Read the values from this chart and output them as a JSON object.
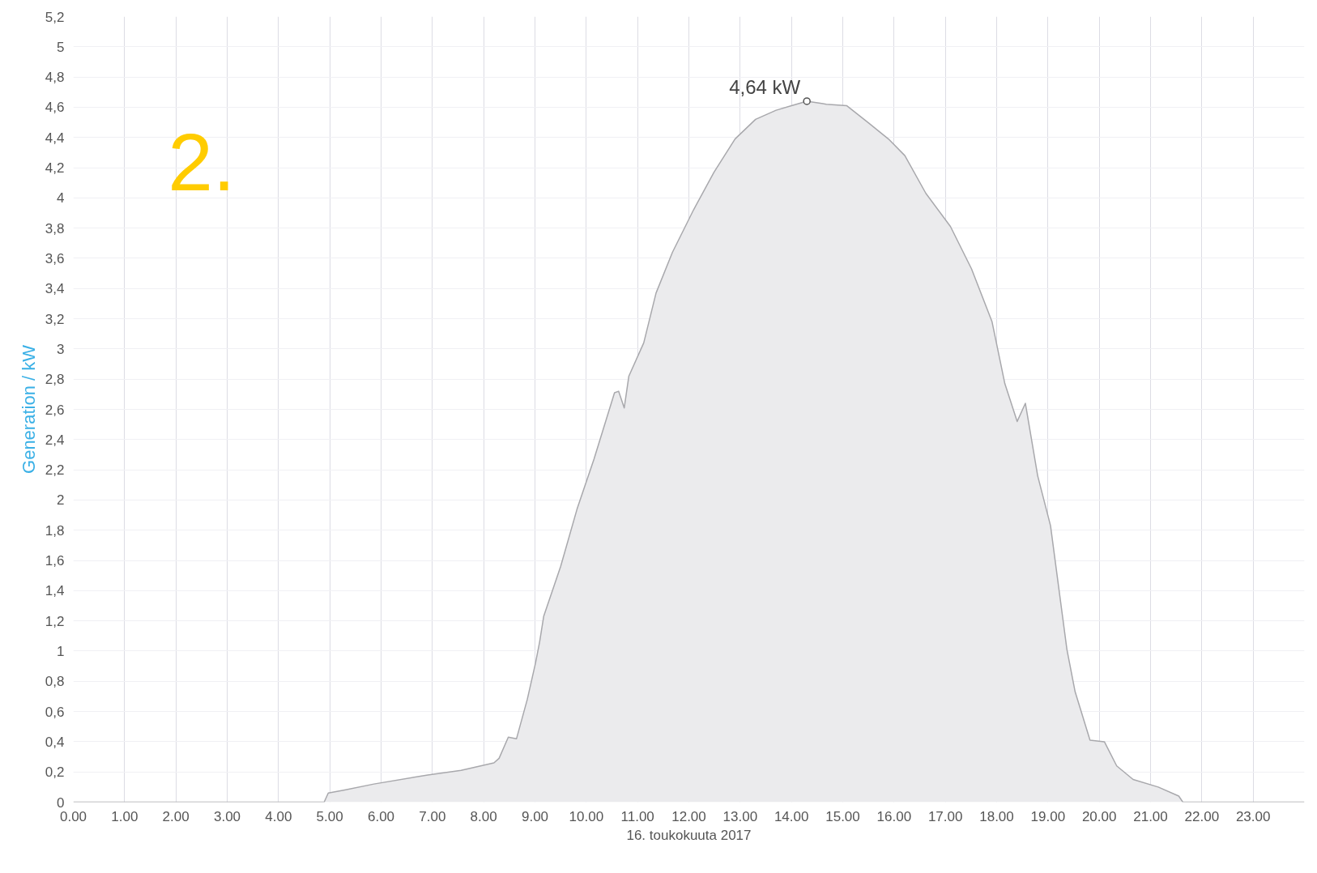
{
  "chart_data": {
    "type": "area",
    "xlabel": "16. toukokuuta 2017",
    "ylabel": "Generation / kW",
    "x": [
      0,
      4.89,
      4.97,
      5.29,
      5.86,
      6.91,
      7.56,
      8.2,
      8.3,
      8.48,
      8.64,
      8.85,
      9.01,
      9.09,
      9.17,
      9.5,
      9.82,
      10.15,
      10.55,
      10.63,
      10.74,
      10.83,
      11.12,
      11.36,
      11.68,
      12.09,
      12.49,
      12.9,
      13.3,
      13.7,
      14.0,
      14.3,
      14.68,
      15.08,
      15.49,
      15.89,
      16.21,
      16.62,
      17.1,
      17.51,
      17.91,
      18.16,
      18.4,
      18.56,
      18.8,
      19.05,
      19.37,
      19.53,
      19.82,
      20.1,
      20.34,
      20.66,
      21.15,
      21.55,
      21.63,
      24
    ],
    "series": [
      {
        "color": "#ebebed",
        "values": [
          0,
          0,
          0.06,
          0.08,
          0.12,
          0.18,
          0.21,
          0.26,
          0.29,
          0.43,
          0.42,
          0.68,
          0.92,
          1.06,
          1.23,
          1.56,
          1.94,
          2.27,
          2.71,
          2.72,
          2.61,
          2.82,
          3.04,
          3.37,
          3.64,
          3.92,
          4.17,
          4.39,
          4.52,
          4.58,
          4.61,
          4.64,
          4.62,
          4.61,
          4.5,
          4.39,
          4.28,
          4.03,
          3.81,
          3.53,
          3.18,
          2.77,
          2.52,
          2.64,
          2.16,
          1.83,
          1.01,
          0.73,
          0.41,
          0.4,
          0.24,
          0.15,
          0.1,
          0.04,
          0,
          0
        ]
      }
    ],
    "xlim": [
      0,
      24
    ],
    "xticks": [
      {
        "value": 0,
        "label": "0.00"
      },
      {
        "value": 1,
        "label": "1.00"
      },
      {
        "value": 2,
        "label": "2.00"
      },
      {
        "value": 3,
        "label": "3.00"
      },
      {
        "value": 4,
        "label": "4.00"
      },
      {
        "value": 5,
        "label": "5.00"
      },
      {
        "value": 6,
        "label": "6.00"
      },
      {
        "value": 7,
        "label": "7.00"
      },
      {
        "value": 8,
        "label": "8.00"
      },
      {
        "value": 9,
        "label": "9.00"
      },
      {
        "value": 10,
        "label": "10.00"
      },
      {
        "value": 11,
        "label": "11.00"
      },
      {
        "value": 12,
        "label": "12.00"
      },
      {
        "value": 13,
        "label": "13.00"
      },
      {
        "value": 14,
        "label": "14.00"
      },
      {
        "value": 15,
        "label": "15.00"
      },
      {
        "value": 16,
        "label": "16.00"
      },
      {
        "value": 17,
        "label": "17.00"
      },
      {
        "value": 18,
        "label": "18.00"
      },
      {
        "value": 19,
        "label": "19.00"
      },
      {
        "value": 20,
        "label": "20.00"
      },
      {
        "value": 21,
        "label": "21.00"
      },
      {
        "value": 22,
        "label": "22.00"
      },
      {
        "value": 23,
        "label": "23.00"
      }
    ],
    "ylim": [
      0,
      5.2
    ],
    "yticks": [
      0,
      {
        "value": 0.2,
        "label": "0,2"
      },
      {
        "value": 0.4,
        "label": "0,4"
      },
      {
        "value": 0.6,
        "label": "0,6"
      },
      {
        "value": 0.8,
        "label": "0,8"
      },
      1,
      {
        "value": 1.2,
        "label": "1,2"
      },
      {
        "value": 1.4,
        "label": "1,4"
      },
      {
        "value": 1.6,
        "label": "1,6"
      },
      {
        "value": 1.8,
        "label": "1,8"
      },
      2,
      {
        "value": 2.2,
        "label": "2,2"
      },
      {
        "value": 2.4,
        "label": "2,4"
      },
      {
        "value": 2.6,
        "label": "2,6"
      },
      {
        "value": 2.8,
        "label": "2,8"
      },
      3,
      {
        "value": 3.2,
        "label": "3,2"
      },
      {
        "value": 3.4,
        "label": "3,4"
      },
      {
        "value": 3.6,
        "label": "3,6"
      },
      {
        "value": 3.8,
        "label": "3,8"
      },
      4,
      {
        "value": 4.2,
        "label": "4,2"
      },
      {
        "value": 4.4,
        "label": "4,4"
      },
      {
        "value": 4.6,
        "label": "4,6"
      },
      {
        "value": 4.8,
        "label": "4,8"
      },
      5,
      {
        "value": 5.2,
        "label": "5,2"
      }
    ],
    "grid": true,
    "annotations": [
      {
        "text": "4,64 kW",
        "x": 14.3,
        "y": 4.64
      },
      "2."
    ]
  }
}
